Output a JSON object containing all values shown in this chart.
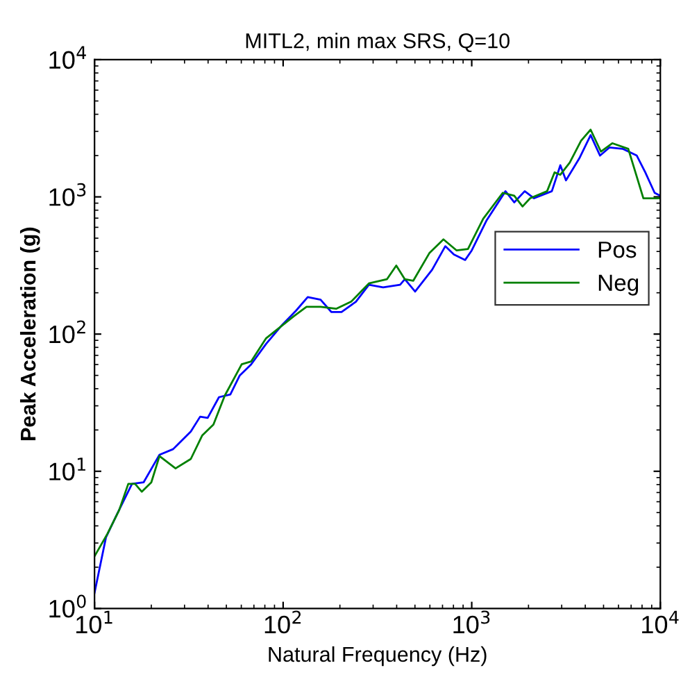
{
  "chart_data": {
    "type": "line",
    "title": "MITL2, min max SRS, Q=10",
    "xlabel": "Natural Frequency (Hz)",
    "ylabel": "Peak Acceleration (g)",
    "log": "xy",
    "xlim": [
      10,
      10000
    ],
    "ylim": [
      1,
      10000
    ],
    "xticks": [
      {
        "value": 10,
        "label": "10$^{1}$"
      },
      {
        "value": 100,
        "label": "10$^{2}$"
      },
      {
        "value": 1000,
        "label": "10$^{3}$"
      },
      {
        "value": 10000,
        "label": "10$^{4}$"
      }
    ],
    "yticks": [
      {
        "value": 1,
        "label": "10$^{0}$"
      },
      {
        "value": 10,
        "label": "10$^{1}$"
      },
      {
        "value": 100,
        "label": "10$^{2}$"
      },
      {
        "value": 1000,
        "label": "10$^{3}$"
      },
      {
        "value": 10000,
        "label": "10$^{4}$"
      }
    ],
    "grid": false,
    "legend": "right",
    "line_style": "solid",
    "marker": "none",
    "series": [
      {
        "name": "Pos",
        "color": "#0000ff",
        "x": [
          10,
          11.5,
          13.2,
          15.8,
          18.2,
          22.1,
          26.1,
          32.4,
          36.3,
          39.8,
          45.7,
          52.5,
          58.9,
          67.6,
          81.3,
          99,
          117,
          135,
          158,
          180,
          204,
          243,
          285,
          339,
          417,
          442,
          501,
          617,
          724,
          804,
          923,
          1000,
          1200,
          1510,
          1680,
          1910,
          2140,
          2660,
          2950,
          3160,
          3720,
          4270,
          4790,
          5370,
          6310,
          7500,
          8320,
          9330,
          10000
        ],
        "values": [
          1.3,
          3.3,
          4.9,
          8.1,
          8.3,
          13.2,
          14.5,
          19.5,
          25,
          24.5,
          34.7,
          36.3,
          50,
          60,
          85,
          117,
          148,
          186,
          178,
          145,
          145,
          172,
          229,
          219,
          229,
          251,
          204,
          295,
          437,
          380,
          347,
          407,
          676,
          1100,
          912,
          1100,
          977,
          1100,
          1700,
          1320,
          1910,
          2820,
          2000,
          2290,
          2240,
          2000,
          1510,
          1070,
          1020
        ]
      },
      {
        "name": "Neg",
        "color": "#008000",
        "x": [
          10,
          11.7,
          13.5,
          15.1,
          16.4,
          17.8,
          20,
          22.1,
          26.9,
          32.4,
          37.2,
          42.7,
          49,
          60.3,
          67.6,
          81.3,
          114,
          133,
          158,
          191,
          229,
          285,
          355,
          398,
          442,
          490,
          596,
          708,
          832,
          955,
          1150,
          1460,
          1680,
          1860,
          2040,
          2510,
          2750,
          2950,
          3310,
          3800,
          4270,
          4840,
          5560,
          6760,
          8130,
          10000
        ],
        "values": [
          2.4,
          3.5,
          5.2,
          8.1,
          8.1,
          7.1,
          8.3,
          12.9,
          10.5,
          12.3,
          18.2,
          21.9,
          35.5,
          60.3,
          63.1,
          93.3,
          135,
          158,
          158,
          153,
          172,
          234,
          251,
          316,
          251,
          245,
          389,
          490,
          407,
          417,
          692,
          1070,
          1020,
          851,
          977,
          1100,
          1510,
          1450,
          1780,
          2570,
          3090,
          2140,
          2460,
          2240,
          977,
          977
        ]
      }
    ]
  }
}
